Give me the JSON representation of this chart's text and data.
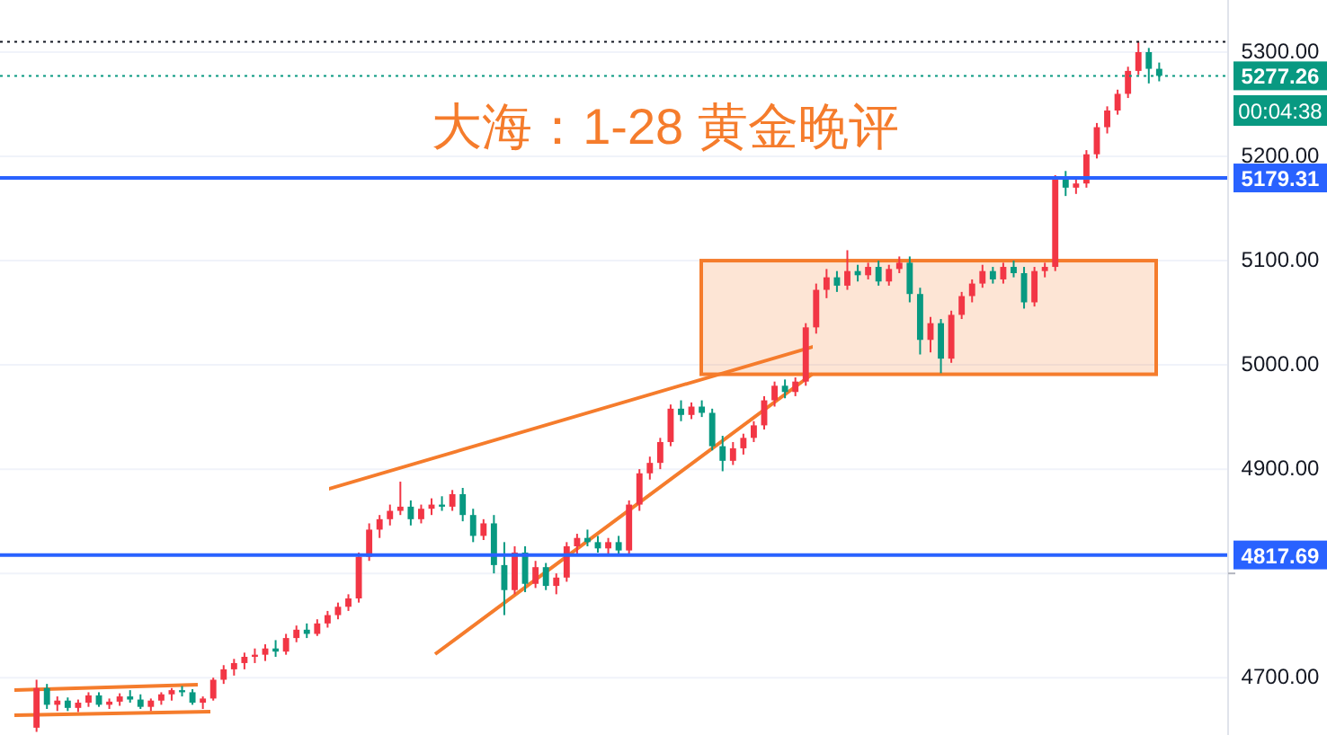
{
  "chart_data": {
    "type": "candlestick",
    "title": "大海：1-28 黄金晚评",
    "categories": [
      null,
      null,
      null,
      null,
      null,
      null,
      null,
      null,
      null,
      null,
      null,
      null,
      null,
      null,
      null,
      null,
      null,
      null,
      null,
      null,
      null,
      null,
      null,
      null,
      null,
      null,
      null,
      null,
      null,
      null,
      null,
      null,
      null,
      null,
      null,
      null,
      null,
      null,
      null,
      null,
      null,
      null,
      null,
      null,
      null,
      null,
      null,
      null,
      null,
      null,
      null,
      null,
      null,
      null,
      null,
      null,
      null,
      null,
      null,
      null,
      null,
      null,
      null,
      null,
      null,
      null,
      null,
      null,
      null,
      null,
      null,
      null,
      null,
      null,
      null,
      null,
      null,
      null,
      null,
      null,
      null,
      null,
      null,
      null,
      null,
      null,
      null,
      null,
      null,
      null,
      null,
      null,
      null,
      null,
      null,
      null,
      null,
      null,
      null,
      null,
      null,
      null,
      null,
      null,
      null,
      null,
      null,
      null,
      null
    ],
    "ohlc": [
      [
        4652,
        4698,
        4648,
        4690
      ],
      [
        4690,
        4694,
        4670,
        4674
      ],
      [
        4674,
        4682,
        4668,
        4678
      ],
      [
        4678,
        4681,
        4668,
        4671
      ],
      [
        4671,
        4679,
        4667,
        4676
      ],
      [
        4676,
        4686,
        4672,
        4683
      ],
      [
        4683,
        4686,
        4672,
        4674
      ],
      [
        4674,
        4680,
        4670,
        4677
      ],
      [
        4677,
        4685,
        4673,
        4682
      ],
      [
        4682,
        4688,
        4676,
        4679
      ],
      [
        4679,
        4684,
        4670,
        4672
      ],
      [
        4672,
        4680,
        4668,
        4678
      ],
      [
        4678,
        4686,
        4674,
        4684
      ],
      [
        4684,
        4690,
        4678,
        4688
      ],
      [
        4688,
        4692,
        4682,
        4686
      ],
      [
        4686,
        4689,
        4674,
        4676
      ],
      [
        4676,
        4682,
        4670,
        4680
      ],
      [
        4680,
        4700,
        4678,
        4698
      ],
      [
        4698,
        4712,
        4694,
        4708
      ],
      [
        4708,
        4718,
        4702,
        4714
      ],
      [
        4714,
        4724,
        4708,
        4720
      ],
      [
        4720,
        4728,
        4714,
        4722
      ],
      [
        4722,
        4732,
        4716,
        4728
      ],
      [
        4728,
        4736,
        4720,
        4725
      ],
      [
        4725,
        4742,
        4722,
        4738
      ],
      [
        4738,
        4750,
        4734,
        4746
      ],
      [
        4746,
        4752,
        4738,
        4742
      ],
      [
        4742,
        4756,
        4740,
        4752
      ],
      [
        4752,
        4764,
        4748,
        4760
      ],
      [
        4760,
        4772,
        4756,
        4768
      ],
      [
        4768,
        4780,
        4764,
        4776
      ],
      [
        4776,
        4820,
        4772,
        4816
      ],
      [
        4816,
        4848,
        4812,
        4842
      ],
      [
        4842,
        4856,
        4834,
        4852
      ],
      [
        4852,
        4866,
        4846,
        4860
      ],
      [
        4860,
        4888,
        4856,
        4864
      ],
      [
        4864,
        4870,
        4846,
        4852
      ],
      [
        4852,
        4866,
        4848,
        4862
      ],
      [
        4862,
        4872,
        4856,
        4866
      ],
      [
        4866,
        4874,
        4860,
        4864
      ],
      [
        4864,
        4880,
        4860,
        4876
      ],
      [
        4876,
        4882,
        4850,
        4856
      ],
      [
        4856,
        4862,
        4830,
        4836
      ],
      [
        4836,
        4852,
        4832,
        4848
      ],
      [
        4848,
        4856,
        4800,
        4808
      ],
      [
        4808,
        4830,
        4760,
        4784
      ],
      [
        4784,
        4826,
        4780,
        4820
      ],
      [
        4820,
        4826,
        4782,
        4790
      ],
      [
        4790,
        4812,
        4786,
        4806
      ],
      [
        4806,
        4810,
        4784,
        4788
      ],
      [
        4788,
        4800,
        4780,
        4796
      ],
      [
        4796,
        4830,
        4792,
        4826
      ],
      [
        4826,
        4838,
        4818,
        4834
      ],
      [
        4834,
        4842,
        4826,
        4830
      ],
      [
        4830,
        4836,
        4820,
        4824
      ],
      [
        4824,
        4834,
        4818,
        4830
      ],
      [
        4830,
        4836,
        4818,
        4822
      ],
      [
        4822,
        4870,
        4818,
        4866
      ],
      [
        4866,
        4900,
        4860,
        4896
      ],
      [
        4896,
        4912,
        4890,
        4906
      ],
      [
        4906,
        4930,
        4900,
        4926
      ],
      [
        4926,
        4962,
        4922,
        4958
      ],
      [
        4958,
        4966,
        4946,
        4952
      ],
      [
        4952,
        4964,
        4948,
        4960
      ],
      [
        4960,
        4966,
        4950,
        4954
      ],
      [
        4954,
        4958,
        4918,
        4922
      ],
      [
        4922,
        4932,
        4898,
        4908
      ],
      [
        4908,
        4926,
        4904,
        4920
      ],
      [
        4920,
        4934,
        4914,
        4930
      ],
      [
        4930,
        4946,
        4926,
        4942
      ],
      [
        4942,
        4970,
        4938,
        4966
      ],
      [
        4966,
        4984,
        4960,
        4980
      ],
      [
        4980,
        4986,
        4968,
        4974
      ],
      [
        4974,
        4988,
        4970,
        4984
      ],
      [
        4984,
        5040,
        4980,
        5036
      ],
      [
        5036,
        5078,
        5030,
        5072
      ],
      [
        5072,
        5092,
        5064,
        5084
      ],
      [
        5084,
        5090,
        5070,
        5076
      ],
      [
        5076,
        5110,
        5072,
        5090
      ],
      [
        5090,
        5096,
        5080,
        5086
      ],
      [
        5086,
        5098,
        5082,
        5094
      ],
      [
        5094,
        5100,
        5076,
        5080
      ],
      [
        5080,
        5096,
        5076,
        5092
      ],
      [
        5092,
        5104,
        5088,
        5098
      ],
      [
        5098,
        5104,
        5060,
        5068
      ],
      [
        5068,
        5074,
        5010,
        5024
      ],
      [
        5024,
        5046,
        5012,
        5040
      ],
      [
        5040,
        5044,
        4992,
        5006
      ],
      [
        5006,
        5052,
        5002,
        5048
      ],
      [
        5048,
        5070,
        5044,
        5066
      ],
      [
        5066,
        5082,
        5060,
        5078
      ],
      [
        5078,
        5096,
        5074,
        5090
      ],
      [
        5090,
        5094,
        5078,
        5082
      ],
      [
        5082,
        5098,
        5078,
        5094
      ],
      [
        5094,
        5100,
        5084,
        5088
      ],
      [
        5088,
        5094,
        5054,
        5060
      ],
      [
        5060,
        5094,
        5056,
        5090
      ],
      [
        5090,
        5098,
        5084,
        5094
      ],
      [
        5094,
        5182,
        5090,
        5178
      ],
      [
        5178,
        5186,
        5162,
        5170
      ],
      [
        5170,
        5180,
        5164,
        5174
      ],
      [
        5174,
        5206,
        5170,
        5202
      ],
      [
        5202,
        5232,
        5198,
        5228
      ],
      [
        5228,
        5248,
        5222,
        5244
      ],
      [
        5244,
        5264,
        5240,
        5260
      ],
      [
        5260,
        5286,
        5256,
        5282
      ],
      [
        5282,
        5310,
        5278,
        5300
      ],
      [
        5300,
        5304,
        5270,
        5284
      ],
      [
        5284,
        5290,
        5272,
        5277.26
      ]
    ],
    "colors": [
      "#f23645",
      "#089981",
      "#f23645",
      "#089981",
      "#f23645",
      "#f23645",
      "#089981",
      "#f23645",
      "#f23645",
      "#089981",
      "#089981",
      "#f23645",
      "#f23645",
      "#f23645",
      "#089981",
      "#089981",
      "#f23645",
      "#f23645",
      "#f23645",
      "#f23645",
      "#f23645",
      "#f23645",
      "#f23645",
      "#089981",
      "#f23645",
      "#f23645",
      "#089981",
      "#f23645",
      "#f23645",
      "#f23645",
      "#f23645",
      "#f23645",
      "#f23645",
      "#f23645",
      "#f23645",
      "#f23645",
      "#089981",
      "#f23645",
      "#f23645",
      "#089981",
      "#f23645",
      "#089981",
      "#089981",
      "#f23645",
      "#089981",
      "#089981",
      "#f23645",
      "#089981",
      "#f23645",
      "#089981",
      "#f23645",
      "#f23645",
      "#f23645",
      "#089981",
      "#089981",
      "#f23645",
      "#089981",
      "#f23645",
      "#f23645",
      "#f23645",
      "#f23645",
      "#f23645",
      "#089981",
      "#f23645",
      "#089981",
      "#089981",
      "#089981",
      "#f23645",
      "#f23645",
      "#f23645",
      "#f23645",
      "#f23645",
      "#089981",
      "#f23645",
      "#f23645",
      "#f23645",
      "#f23645",
      "#089981",
      "#f23645",
      "#089981",
      "#f23645",
      "#089981",
      "#f23645",
      "#f23645",
      "#089981",
      "#089981",
      "#f23645",
      "#089981",
      "#f23645",
      "#f23645",
      "#f23645",
      "#f23645",
      "#089981",
      "#f23645",
      "#089981",
      "#089981",
      "#f23645",
      "#f23645",
      "#f23645",
      "#089981",
      "#f23645",
      "#f23645",
      "#f23645",
      "#f23645",
      "#f23645",
      "#f23645",
      "#f23645",
      "#089981",
      "#089981"
    ],
    "ylim": [
      4645,
      5350
    ],
    "yticks": [
      {
        "value": 5300,
        "label": "5300.00"
      },
      {
        "value": 5200,
        "label": "5200.00"
      },
      {
        "value": 5100,
        "label": "5100.00"
      },
      {
        "value": 5000,
        "label": "5000.00"
      },
      {
        "value": 4900,
        "label": "4900.00"
      },
      {
        "value": 4800,
        "label": null
      },
      {
        "value": 4700,
        "label": "4700.00"
      }
    ],
    "tick_labels": "y",
    "grid": "y",
    "ref_lines": [
      {
        "axis": "y",
        "value": 5310,
        "label": null,
        "color": "#131722",
        "line_style": "dotted"
      },
      {
        "axis": "y",
        "value": 5277.26,
        "label": "5277.26",
        "color": "#089981",
        "line_style": "dotted"
      },
      {
        "axis": "y",
        "value": 5179.31,
        "label": "5179.31",
        "color": "#2962ff",
        "line_style": "solid"
      },
      {
        "axis": "y",
        "value": 4817.69,
        "label": "4817.69",
        "color": "#2962ff",
        "line_style": "solid"
      }
    ],
    "bands": [
      {
        "axis": "y",
        "from": 4991,
        "to": 5100,
        "color": "#f57c2c"
      }
    ],
    "annotations": [
      "00:04:38"
    ]
  }
}
